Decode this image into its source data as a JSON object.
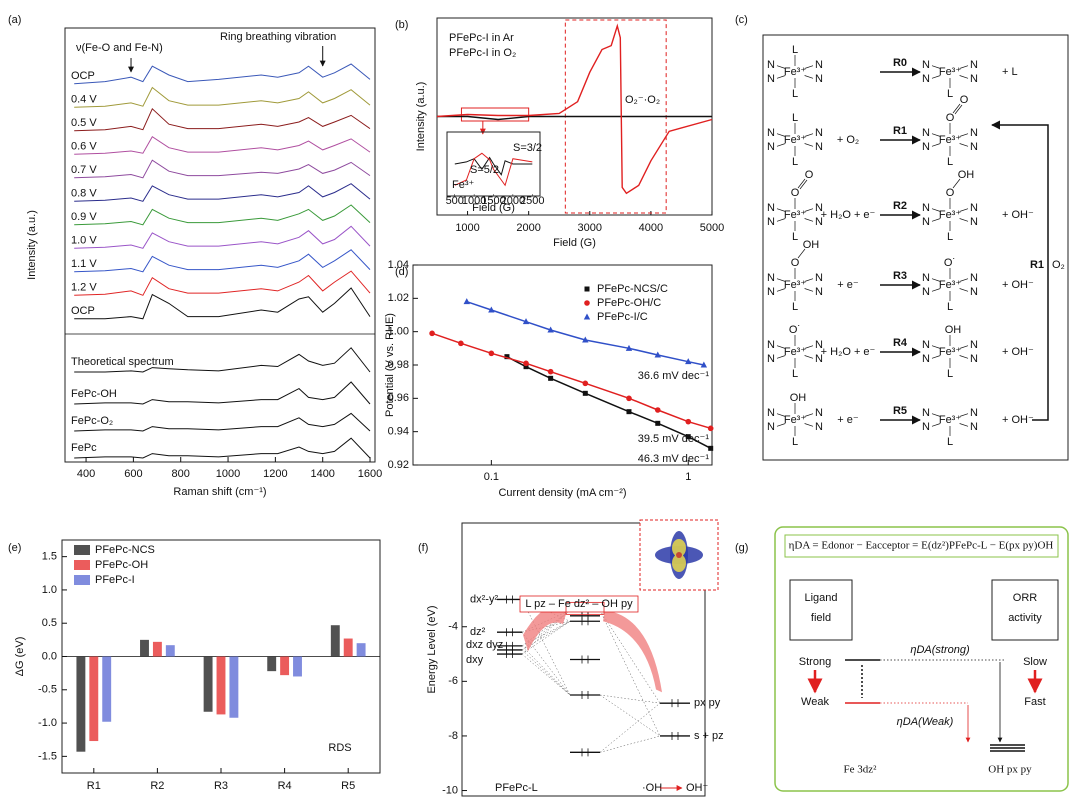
{
  "chart_data": [
    {
      "type": "spectra",
      "label": "(a)",
      "xlabel": "Raman shift (cm⁻¹)",
      "ylabel": "Intensity (a.u.)",
      "annotations": [
        "ν(Fe-O and Fe-N)",
        "Ring breathing vibration"
      ],
      "xlim": [
        311,
        1621
      ],
      "xticks": [
        400,
        600,
        800,
        1000,
        1200,
        1400,
        1600
      ],
      "x": [
        350,
        480,
        590,
        640,
        680,
        750,
        830,
        960,
        1140,
        1210,
        1300,
        1340,
        1400,
        1450,
        1520,
        1600
      ],
      "series": [
        {
          "name": "OCP",
          "color": "#3a58b8",
          "values": [
            1,
            2,
            4,
            2,
            9,
            5,
            2,
            3,
            5,
            4,
            6,
            9,
            4,
            6,
            10,
            3
          ]
        },
        {
          "name": "0.4 V",
          "color": "#a09a3a",
          "values": [
            1,
            1.5,
            3,
            1.5,
            10,
            4,
            2,
            2,
            4,
            3,
            5,
            8,
            3,
            5,
            9,
            2
          ]
        },
        {
          "name": "0.5 V",
          "color": "#8b1c1c",
          "values": [
            1,
            1.5,
            3,
            1.5,
            11,
            4,
            2,
            2,
            4,
            3,
            5,
            7,
            3,
            5,
            8,
            2
          ]
        },
        {
          "name": "0.6 V",
          "color": "#b04fa0",
          "values": [
            1,
            1.5,
            2.5,
            1.5,
            9,
            4,
            2,
            2,
            4,
            3,
            5,
            7,
            3,
            5,
            8,
            2
          ]
        },
        {
          "name": "0.7 V",
          "color": "#8e4a9e",
          "values": [
            1,
            1.5,
            2.5,
            1,
            9,
            4,
            2,
            2,
            3.5,
            3,
            5,
            7,
            3,
            4.5,
            8,
            2
          ]
        },
        {
          "name": "0.8 V",
          "color": "#2b2d8c",
          "values": [
            1,
            1.5,
            2.5,
            1,
            8,
            4,
            2,
            2,
            4,
            3,
            5,
            8,
            3,
            5,
            9,
            2
          ]
        },
        {
          "name": "0.9 V",
          "color": "#3a9a3a",
          "values": [
            1,
            1.5,
            2.5,
            1,
            8,
            4,
            2,
            2,
            4,
            3,
            6,
            8,
            3,
            5,
            10,
            2
          ]
        },
        {
          "name": "1.0 V",
          "color": "#9a55c8",
          "values": [
            1,
            1.5,
            2.5,
            1,
            8,
            4,
            2,
            2,
            4,
            3,
            6,
            9,
            3,
            5,
            11,
            2
          ]
        },
        {
          "name": "1.1 V",
          "color": "#3656c8",
          "values": [
            1,
            1.5,
            2.5,
            1,
            8,
            4,
            2,
            2,
            4,
            3,
            6,
            9,
            3,
            6,
            11,
            2
          ]
        },
        {
          "name": "1.2 V",
          "color": "#e02525",
          "values": [
            1,
            1.5,
            3,
            1,
            9,
            4,
            2,
            2,
            4,
            3,
            7,
            10,
            3,
            7,
            12,
            2
          ]
        },
        {
          "name": "OCP",
          "color": "#111111",
          "values": [
            1,
            1,
            2,
            1,
            12,
            8,
            2,
            2,
            5,
            4,
            10,
            11,
            4,
            8,
            15,
            2
          ]
        },
        {
          "name": "Theoretical spectrum",
          "color": "#111111",
          "values": [
            0,
            0,
            0.5,
            0,
            2,
            1.5,
            1,
            0.5,
            3,
            2.5,
            8,
            5,
            3,
            4,
            11,
            0
          ]
        },
        {
          "name": "FePc-OH",
          "color": "#111111",
          "values": [
            0,
            0.5,
            0.5,
            0,
            2,
            1,
            1,
            0.5,
            2,
            2,
            7,
            3,
            2,
            3,
            10,
            0
          ]
        },
        {
          "name": "FePc-O₂",
          "color": "#111111",
          "values": [
            0,
            0.5,
            0.5,
            0,
            2,
            1,
            1,
            0.5,
            2,
            2,
            6,
            3,
            2,
            3,
            8,
            0
          ]
        },
        {
          "name": "FePc",
          "color": "#111111",
          "values": [
            0,
            0.5,
            0.5,
            0,
            2,
            1,
            1,
            0.5,
            2,
            2,
            5,
            3,
            2,
            3,
            9,
            0
          ]
        }
      ]
    },
    {
      "type": "epr",
      "label": "(b)",
      "xlabel": "Field (G)",
      "ylabel": "Intensity (a.u.)",
      "xlim": [
        500,
        5000
      ],
      "xticks": [
        1000,
        2000,
        3000,
        4000,
        5000
      ],
      "ylim": [
        -10,
        10
      ],
      "annotations": [
        "O₂⁻·O₂",
        "S=3/2",
        "S=5/2",
        "Fe³⁺"
      ],
      "x": [
        500,
        1000,
        1500,
        2000,
        2500,
        2800,
        3000,
        3200,
        3350,
        3450,
        3500,
        3530,
        3600,
        3800,
        4000,
        4300,
        5000
      ],
      "series": [
        {
          "name": "PFePc-I in Ar",
          "color": "#111111",
          "values": [
            0,
            0,
            -0.3,
            0,
            0,
            0,
            0,
            0,
            0,
            0,
            0,
            0,
            0,
            0,
            0,
            0,
            0
          ]
        },
        {
          "name": "PFePc-I in O₂",
          "color": "#e02020",
          "values": [
            0,
            0.2,
            0.1,
            0.1,
            0.3,
            1.5,
            4.5,
            6.8,
            7.2,
            9.2,
            8,
            -7.2,
            -7.8,
            -7,
            -4.5,
            -1.5,
            -0.3
          ]
        }
      ],
      "inset": {
        "xlabel": "Field (G)",
        "xlim": [
          300,
          2700
        ],
        "xticks": [
          500,
          1000,
          1500,
          2000,
          2500
        ],
        "ylim": [
          -3,
          3
        ],
        "x": [
          500,
          800,
          1000,
          1200,
          1400,
          1500,
          1700,
          1800,
          2000,
          2500
        ],
        "series": [
          {
            "color": "#111111",
            "values": [
              0,
              0.2,
              0.5,
              -0.5,
              0.6,
              0,
              -1,
              0.3,
              0,
              0
            ]
          },
          {
            "color": "#e02020",
            "values": [
              -2,
              -1.5,
              0.5,
              1,
              0.4,
              -0.5,
              -1.5,
              -2,
              0.5,
              0.2
            ]
          }
        ]
      }
    },
    {
      "type": "line",
      "label": "(d)",
      "xlabel": "Current density (mA cm⁻²)",
      "ylabel": "Potential (V vs. RHE)",
      "logx": true,
      "legend": "upper-right",
      "xlim": [
        0.04,
        1.32
      ],
      "xticks": [
        0.1,
        1
      ],
      "ylim": [
        0.92,
        1.04
      ],
      "yticks": [
        0.92,
        0.94,
        0.96,
        0.98,
        {
          "value": 1,
          "label": "1.00"
        },
        1.02,
        1.04
      ],
      "series": [
        {
          "name": "PFePc-NCS/C",
          "color": "#111111",
          "marker": "square",
          "annotation": "46.3 mV dec⁻¹",
          "x": [
            0.12,
            0.15,
            0.2,
            0.3,
            0.5,
            0.7,
            1.0,
            1.3
          ],
          "values": [
            0.985,
            0.979,
            0.972,
            0.963,
            0.952,
            0.945,
            0.937,
            0.93
          ]
        },
        {
          "name": "PFePc-OH/C",
          "color": "#e02020",
          "marker": "circle",
          "annotation": "39.5 mV dec⁻¹",
          "x": [
            0.05,
            0.07,
            0.1,
            0.15,
            0.2,
            0.3,
            0.5,
            0.7,
            1.0,
            1.3
          ],
          "values": [
            0.999,
            0.993,
            0.987,
            0.981,
            0.976,
            0.969,
            0.96,
            0.953,
            0.946,
            0.942
          ]
        },
        {
          "name": "PFePc-I/C",
          "color": "#3050c8",
          "marker": "triangle",
          "annotation": "36.6 mV dec⁻¹",
          "x": [
            0.075,
            0.1,
            0.15,
            0.2,
            0.3,
            0.5,
            0.7,
            1.0,
            1.2
          ],
          "values": [
            1.018,
            1.013,
            1.006,
            1.001,
            0.995,
            0.99,
            0.986,
            0.982,
            0.98
          ]
        }
      ]
    },
    {
      "type": "bar",
      "label": "(e)",
      "ylabel": "ΔG (eV)",
      "annotation": "RDS",
      "categories": [
        "R1",
        "R2",
        "R3",
        "R4",
        "R5"
      ],
      "ylim": [
        -1.75,
        1.75
      ],
      "yticks": [
        -1.5,
        {
          "value": -1,
          "label": "-1.0"
        },
        -0.5,
        {
          "value": 0,
          "label": "0.0"
        },
        0.5,
        {
          "value": 1,
          "label": "1.0"
        },
        1.5
      ],
      "series": [
        {
          "name": "PFePc-NCS",
          "color": "#333333",
          "values": [
            -1.43,
            0.25,
            -0.83,
            -0.22,
            0.47
          ]
        },
        {
          "name": "PFePc-OH",
          "color": "#e84040",
          "values": [
            -1.27,
            0.22,
            -0.87,
            -0.28,
            0.27
          ]
        },
        {
          "name": "PFePc-I",
          "color": "#6a78d8",
          "values": [
            -0.98,
            0.17,
            -0.92,
            -0.3,
            0.2
          ]
        }
      ]
    },
    {
      "type": "levels",
      "label": "(f)",
      "ylabel": "Energy Level (eV)",
      "ylim": [
        -10.2,
        -0.2
      ],
      "yticks": [
        -10,
        -8,
        -6,
        -4
      ],
      "annotation": "L pz – Fe dz² – OH py",
      "orbital_labels": [
        "dx²-y²",
        "dz²",
        "dxz dyz",
        "dxy",
        "px py",
        "s + pz"
      ],
      "columns": [
        {
          "name": "PFePc-L",
          "levels": [
            -3.0,
            -4.2,
            -4.7,
            -4.85,
            -5.0
          ]
        },
        {
          "levels": [
            -3.4,
            -3.6,
            -3.8,
            -5.2,
            -6.5,
            -8.6
          ]
        },
        {
          "name": "·OH",
          "product": "OH⁻",
          "levels": [
            -6.8,
            -8.0
          ]
        }
      ]
    }
  ],
  "diagrams": {
    "c": {
      "label": "(c)",
      "atoms": {
        "N": "N",
        "Fe": "Fe³⁺",
        "L": "L",
        "O": "O",
        "OH": "OH",
        "Orad": "O˙"
      },
      "steps": [
        {
          "name": "R0",
          "product": "+ L"
        },
        {
          "name": "R1",
          "reagent": "+ O₂"
        },
        {
          "name": "R2",
          "reagent": "+ H₂O + e⁻",
          "product": "+ OH⁻"
        },
        {
          "name": "R3",
          "reagent": "+ e⁻",
          "product": "+ OH⁻"
        },
        {
          "name": "R4",
          "reagent": "+ H₂O + e⁻",
          "product": "+ OH⁻"
        },
        {
          "name": "R5",
          "reagent": "+ e⁻",
          "product": "+ OH⁻"
        }
      ],
      "cycle": {
        "name": "R1",
        "reagent": "O₂"
      }
    },
    "g": {
      "label": "(g)",
      "formula": "ηDA = Edonor − Eacceptor = E(dz²)PFePc-L − E(px py)OH",
      "left_box": [
        "Ligand",
        "field"
      ],
      "right_box": [
        "ORR",
        "activity"
      ],
      "strong": "Strong",
      "weak": "Weak",
      "slow": "Slow",
      "fast": "Fast",
      "gap_strong": "ηDA(strong)",
      "gap_weak": "ηDA(Weak)",
      "donor": "Fe 3dz²",
      "acceptor": "OH px py"
    }
  }
}
